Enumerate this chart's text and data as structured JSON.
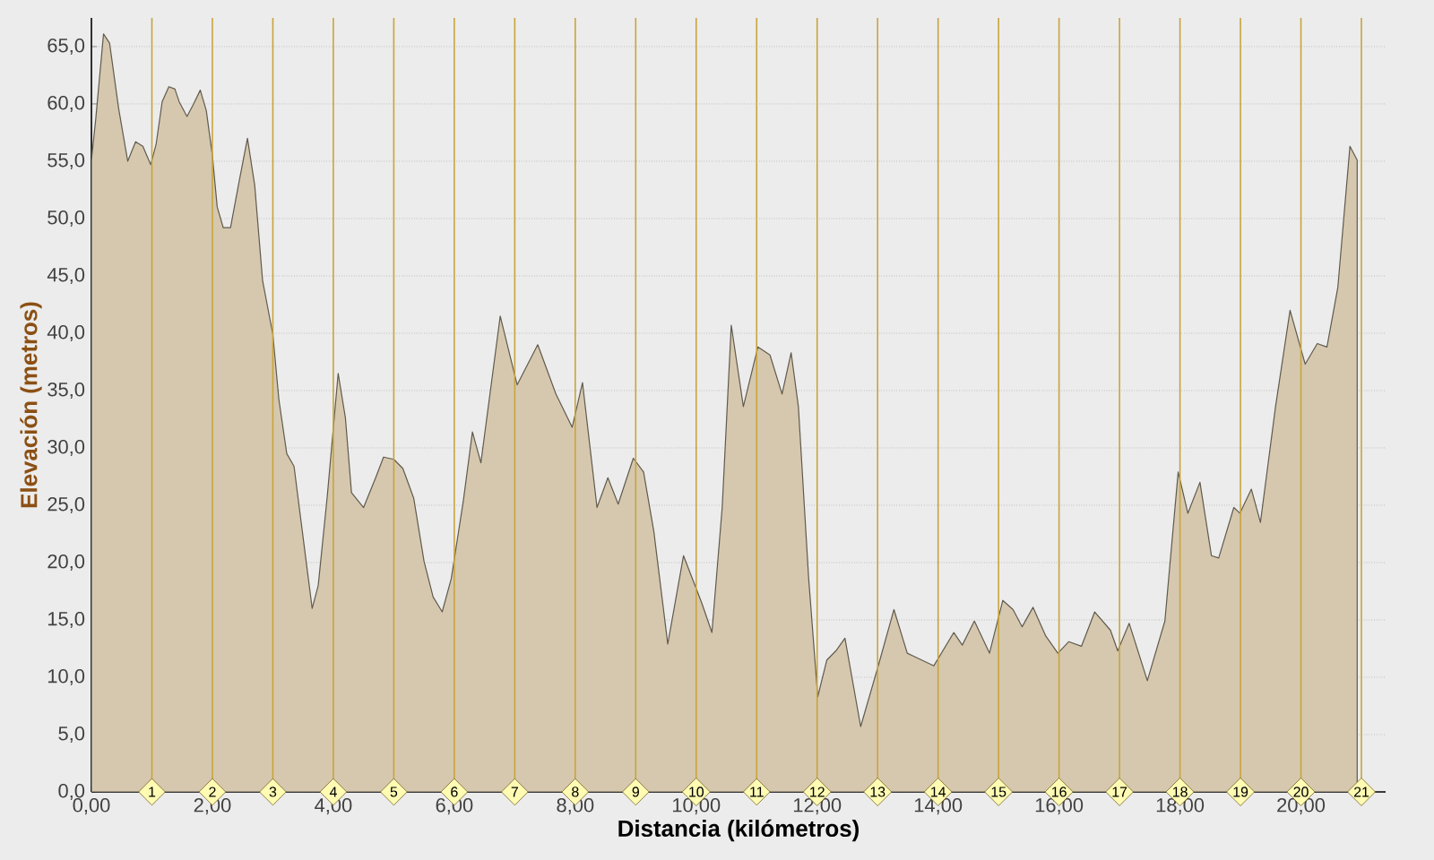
{
  "chart_data": {
    "type": "area",
    "xlabel": "Distancia (kilómetros)",
    "ylabel": "Elevación (metros)",
    "color": "#d6c8ae",
    "grid": "y",
    "xlim": [
      0,
      21.4
    ],
    "ylim": [
      0,
      67.5
    ],
    "xticks": [
      {
        "value": 0,
        "label": "0,00"
      },
      {
        "value": 2,
        "label": "2,00"
      },
      {
        "value": 4,
        "label": "4,00"
      },
      {
        "value": 6,
        "label": "6,00"
      },
      {
        "value": 8,
        "label": "8,00"
      },
      {
        "value": 10,
        "label": "10,00"
      },
      {
        "value": 12,
        "label": "12,00"
      },
      {
        "value": 14,
        "label": "14,00"
      },
      {
        "value": 16,
        "label": "16,00"
      },
      {
        "value": 18,
        "label": "18,00"
      },
      {
        "value": 20,
        "label": "20,00"
      }
    ],
    "yticks": [
      {
        "value": 0,
        "label": "0,0"
      },
      {
        "value": 5,
        "label": "5,0"
      },
      {
        "value": 10,
        "label": "10,0"
      },
      {
        "value": 15,
        "label": "15,0"
      },
      {
        "value": 20,
        "label": "20,0"
      },
      {
        "value": 25,
        "label": "25,0"
      },
      {
        "value": 30,
        "label": "30,0"
      },
      {
        "value": 35,
        "label": "35,0"
      },
      {
        "value": 40,
        "label": "40,0"
      },
      {
        "value": 45,
        "label": "45,0"
      },
      {
        "value": 50,
        "label": "50,0"
      },
      {
        "value": 55,
        "label": "55,0"
      },
      {
        "value": 60,
        "label": "60,0"
      },
      {
        "value": 65,
        "label": "65,0"
      }
    ],
    "x": [
      0,
      0.07,
      0.2,
      0.3,
      0.45,
      0.6,
      0.73,
      0.85,
      0.98,
      1.07,
      1.17,
      1.28,
      1.38,
      1.45,
      1.58,
      1.68,
      1.8,
      1.9,
      2.0,
      2.08,
      2.18,
      2.3,
      2.43,
      2.58,
      2.7,
      2.83,
      3.0,
      3.1,
      3.23,
      3.35,
      3.5,
      3.65,
      3.75,
      3.9,
      4.08,
      4.2,
      4.3,
      4.5,
      4.7,
      4.83,
      5.0,
      5.15,
      5.33,
      5.5,
      5.65,
      5.8,
      5.95,
      6.15,
      6.3,
      6.44,
      6.76,
      7.04,
      7.38,
      7.68,
      7.95,
      8.12,
      8.36,
      8.54,
      8.71,
      8.96,
      9.13,
      9.3,
      9.53,
      9.79,
      10.09,
      10.26,
      10.43,
      10.58,
      10.78,
      11.02,
      11.22,
      11.42,
      11.57,
      11.69,
      11.86,
      12.01,
      12.16,
      12.31,
      12.46,
      12.72,
      13.0,
      13.27,
      13.49,
      13.93,
      14.26,
      14.4,
      14.6,
      14.85,
      15.07,
      15.24,
      15.39,
      15.57,
      15.78,
      15.98,
      16.16,
      16.37,
      16.59,
      16.85,
      16.97,
      17.16,
      17.46,
      17.75,
      17.97,
      18.13,
      18.33,
      18.52,
      18.64,
      18.89,
      18.99,
      19.18,
      19.33,
      19.58,
      19.82,
      20.07,
      20.27,
      20.43,
      20.61,
      20.81,
      20.93
    ],
    "values": [
      55.1,
      58.6,
      66.1,
      65.3,
      59.6,
      55,
      56.7,
      56.3,
      54.7,
      56.5,
      60.2,
      61.5,
      61.3,
      60.2,
      58.9,
      59.9,
      61.2,
      59.4,
      55.5,
      51,
      49.2,
      49.2,
      52.9,
      57,
      52.9,
      44.6,
      39.9,
      34.2,
      29.5,
      28.4,
      22.2,
      16,
      18,
      25.8,
      36.5,
      32.6,
      26.1,
      24.8,
      27.4,
      29.2,
      29,
      28.2,
      25.6,
      20.1,
      17,
      15.7,
      18.6,
      25.4,
      31.4,
      28.7,
      41.5,
      35.5,
      39,
      34.7,
      31.8,
      35.7,
      24.8,
      27.4,
      25.1,
      29.1,
      27.9,
      22.7,
      12.9,
      20.6,
      16.5,
      13.9,
      24.8,
      40.7,
      33.6,
      38.8,
      38.1,
      34.7,
      38.3,
      33.6,
      18.6,
      8.3,
      11.5,
      12.3,
      13.4,
      5.7,
      10.8,
      15.9,
      12.1,
      11,
      13.9,
      12.8,
      14.9,
      12.1,
      16.7,
      15.9,
      14.4,
      16.1,
      13.6,
      12.1,
      13.1,
      12.7,
      15.7,
      14.1,
      12.3,
      14.7,
      9.7,
      14.9,
      27.9,
      24.3,
      27,
      20.6,
      20.4,
      24.8,
      24.3,
      26.4,
      23.5,
      33.6,
      42,
      37.3,
      39.1,
      38.8,
      44,
      56.3,
      55.1
    ],
    "ref_lines": [
      {
        "axis": "x",
        "value": 1,
        "label": "1",
        "color": "#c8a43c"
      },
      {
        "axis": "x",
        "value": 2,
        "label": "2",
        "color": "#c8a43c"
      },
      {
        "axis": "x",
        "value": 3,
        "label": "3",
        "color": "#c8a43c"
      },
      {
        "axis": "x",
        "value": 4,
        "label": "4",
        "color": "#c8a43c"
      },
      {
        "axis": "x",
        "value": 5,
        "label": "5",
        "color": "#c8a43c"
      },
      {
        "axis": "x",
        "value": 6,
        "label": "6",
        "color": "#c8a43c"
      },
      {
        "axis": "x",
        "value": 7,
        "label": "7",
        "color": "#c8a43c"
      },
      {
        "axis": "x",
        "value": 8,
        "label": "8",
        "color": "#c8a43c"
      },
      {
        "axis": "x",
        "value": 9,
        "label": "9",
        "color": "#c8a43c"
      },
      {
        "axis": "x",
        "value": 10,
        "label": "10",
        "color": "#c8a43c"
      },
      {
        "axis": "x",
        "value": 11,
        "label": "11",
        "color": "#c8a43c"
      },
      {
        "axis": "x",
        "value": 12,
        "label": "12",
        "color": "#c8a43c"
      },
      {
        "axis": "x",
        "value": 13,
        "label": "13",
        "color": "#c8a43c"
      },
      {
        "axis": "x",
        "value": 14,
        "label": "14",
        "color": "#c8a43c"
      },
      {
        "axis": "x",
        "value": 15,
        "label": "15",
        "color": "#c8a43c"
      },
      {
        "axis": "x",
        "value": 16,
        "label": "16",
        "color": "#c8a43c"
      },
      {
        "axis": "x",
        "value": 17,
        "label": "17",
        "color": "#c8a43c"
      },
      {
        "axis": "x",
        "value": 18,
        "label": "18",
        "color": "#c8a43c"
      },
      {
        "axis": "x",
        "value": 19,
        "label": "19",
        "color": "#c8a43c"
      },
      {
        "axis": "x",
        "value": 20,
        "label": "20",
        "color": "#c8a43c"
      },
      {
        "axis": "x",
        "value": 21,
        "label": "21",
        "color": "#c8a43c"
      }
    ]
  }
}
